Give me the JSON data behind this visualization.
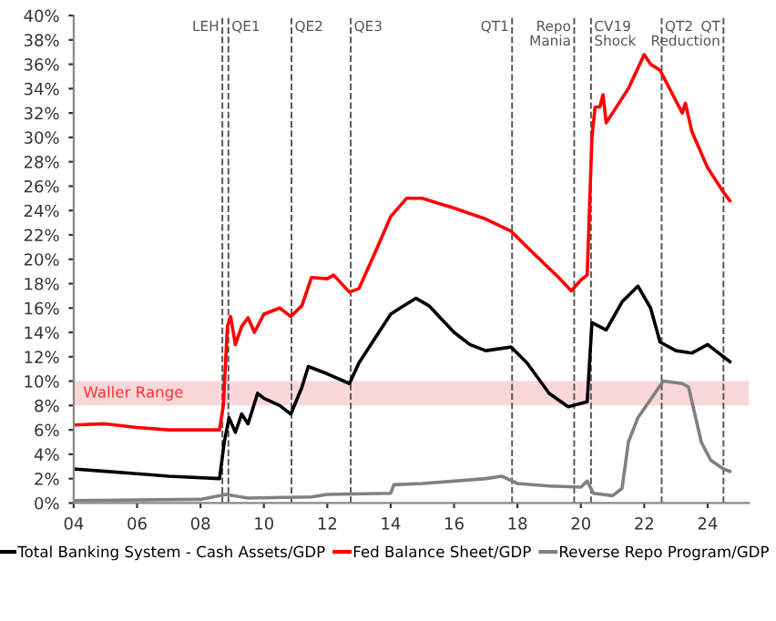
{
  "chart_data": {
    "type": "line",
    "xlim": [
      2004,
      2025.3
    ],
    "ylim": [
      0,
      40
    ],
    "xticks": [
      {
        "value": 2004,
        "label": "04"
      },
      {
        "value": 2006,
        "label": "06"
      },
      {
        "value": 2008,
        "label": "08"
      },
      {
        "value": 2010,
        "label": "10"
      },
      {
        "value": 2012,
        "label": "12"
      },
      {
        "value": 2014,
        "label": "14"
      },
      {
        "value": 2016,
        "label": "16"
      },
      {
        "value": 2018,
        "label": "18"
      },
      {
        "value": 2020,
        "label": "20"
      },
      {
        "value": 2022,
        "label": "22"
      },
      {
        "value": 2024,
        "label": "24"
      }
    ],
    "yticks": [
      {
        "value": 0,
        "label": "0%"
      },
      {
        "value": 2,
        "label": "2%"
      },
      {
        "value": 4,
        "label": "4%"
      },
      {
        "value": 6,
        "label": "6%"
      },
      {
        "value": 8,
        "label": "8%"
      },
      {
        "value": 10,
        "label": "10%"
      },
      {
        "value": 12,
        "label": "12%"
      },
      {
        "value": 14,
        "label": "14%"
      },
      {
        "value": 16,
        "label": "16%"
      },
      {
        "value": 18,
        "label": "18%"
      },
      {
        "value": 20,
        "label": "20%"
      },
      {
        "value": 22,
        "label": "22%"
      },
      {
        "value": 24,
        "label": "24%"
      },
      {
        "value": 26,
        "label": "26%"
      },
      {
        "value": 28,
        "label": "28%"
      },
      {
        "value": 30,
        "label": "30%"
      },
      {
        "value": 32,
        "label": "32%"
      },
      {
        "value": 34,
        "label": "34%"
      },
      {
        "value": 36,
        "label": "36%"
      },
      {
        "value": 38,
        "label": "38%"
      },
      {
        "value": 40,
        "label": "40%"
      }
    ],
    "grid": false,
    "legend": "bottom",
    "marker": "none",
    "line_style": "solid",
    "bands": [
      {
        "axis": "y",
        "from": 8,
        "to": 10,
        "label": "Waller Range",
        "color": "#f8d7d9"
      }
    ],
    "ref_lines": [
      {
        "axis": "x",
        "value": 2008.69,
        "label": "LEH",
        "color": "#555555",
        "line_style": "dashed"
      },
      {
        "axis": "x",
        "value": 2008.88,
        "label": "QE1",
        "color": "#555555",
        "line_style": "dashed"
      },
      {
        "axis": "x",
        "value": 2010.87,
        "label": "QE2",
        "color": "#555555",
        "line_style": "dashed"
      },
      {
        "axis": "x",
        "value": 2012.74,
        "label": "QE3",
        "color": "#555555",
        "line_style": "dashed"
      },
      {
        "axis": "x",
        "value": 2017.83,
        "label": "QT1",
        "color": "#555555",
        "line_style": "dashed"
      },
      {
        "axis": "x",
        "value": 2019.79,
        "label": "Repo\nMania",
        "color": "#555555",
        "line_style": "dashed"
      },
      {
        "axis": "x",
        "value": 2020.32,
        "label": "CV19\nShock",
        "color": "#555555",
        "line_style": "dashed"
      },
      {
        "axis": "x",
        "value": 2022.55,
        "label": "QT2",
        "color": "#555555",
        "line_style": "dashed"
      },
      {
        "axis": "x",
        "value": 2024.5,
        "label": "QT\nReduction",
        "color": "#555555",
        "line_style": "dashed"
      }
    ],
    "series": [
      {
        "name": "Total Banking System - Cash Assets/GDP",
        "color": "#000000",
        "x": [
          2004,
          2005,
          2006,
          2007,
          2008.6,
          2008.75,
          2008.9,
          2009.1,
          2009.3,
          2009.5,
          2009.8,
          2010,
          2010.5,
          2010.85,
          2011.2,
          2011.4,
          2012,
          2012.7,
          2013,
          2013.5,
          2014,
          2014.3,
          2014.8,
          2015.2,
          2016,
          2016.5,
          2017,
          2017.8,
          2018.3,
          2019,
          2019.6,
          2020.2,
          2020.35,
          2020.8,
          2021.3,
          2021.8,
          2022.2,
          2022.5,
          2023,
          2023.5,
          2024,
          2024.7
        ],
        "values": [
          2.8,
          2.6,
          2.4,
          2.2,
          2.0,
          5.0,
          7.0,
          5.8,
          7.3,
          6.5,
          9.0,
          8.6,
          8.0,
          7.3,
          9.5,
          11.2,
          10.6,
          9.8,
          11.5,
          13.5,
          15.5,
          16.0,
          16.8,
          16.2,
          14.0,
          13.0,
          12.5,
          12.8,
          11.5,
          9.0,
          7.9,
          8.3,
          14.8,
          14.2,
          16.5,
          17.8,
          16.0,
          13.2,
          12.5,
          12.3,
          13.0,
          11.6
        ]
      },
      {
        "name": "Fed Balance Sheet/GDP",
        "color": "#ff0000",
        "x": [
          2004,
          2005,
          2006,
          2007,
          2008.6,
          2008.72,
          2008.85,
          2008.95,
          2009.1,
          2009.3,
          2009.5,
          2009.7,
          2010,
          2010.5,
          2010.85,
          2011.2,
          2011.5,
          2012,
          2012.2,
          2012.7,
          2013,
          2013.5,
          2014,
          2014.5,
          2015,
          2015.5,
          2016,
          2017,
          2017.8,
          2018.5,
          2019.3,
          2019.7,
          2020.0,
          2020.2,
          2020.35,
          2020.45,
          2020.6,
          2020.7,
          2020.8,
          2021,
          2021.5,
          2022.0,
          2022.2,
          2022.5,
          2023,
          2023.2,
          2023.3,
          2023.5,
          2024,
          2024.5,
          2024.7
        ],
        "values": [
          6.4,
          6.5,
          6.2,
          6.0,
          6.0,
          8.0,
          14.5,
          15.3,
          13.0,
          14.5,
          15.2,
          14.0,
          15.5,
          16.0,
          15.3,
          16.2,
          18.5,
          18.4,
          18.7,
          17.3,
          17.6,
          20.5,
          23.5,
          25.0,
          25.0,
          24.6,
          24.2,
          23.3,
          22.3,
          20.5,
          18.5,
          17.4,
          18.3,
          18.7,
          30.0,
          32.5,
          32.5,
          33.5,
          31.2,
          32.0,
          34.0,
          36.8,
          36.0,
          35.5,
          33.0,
          32.0,
          32.8,
          30.5,
          27.5,
          25.5,
          24.8
        ]
      },
      {
        "name": "Reverse Repo Program/GDP",
        "color": "#808080",
        "x": [
          2004,
          2008,
          2008.8,
          2009.5,
          2011.5,
          2012,
          2014,
          2014.1,
          2015,
          2016,
          2017,
          2017.5,
          2018,
          2019,
          2020,
          2020.2,
          2020.4,
          2021.0,
          2021.3,
          2021.5,
          2021.8,
          2022.2,
          2022.6,
          2023.2,
          2023.4,
          2023.8,
          2024.1,
          2024.5,
          2024.7
        ],
        "values": [
          0.2,
          0.3,
          0.7,
          0.4,
          0.5,
          0.7,
          0.8,
          1.5,
          1.6,
          1.8,
          2.0,
          2.2,
          1.6,
          1.4,
          1.3,
          1.8,
          0.8,
          0.6,
          1.2,
          5.0,
          7.0,
          8.5,
          10.0,
          9.8,
          9.5,
          5.0,
          3.5,
          2.8,
          2.6
        ]
      }
    ]
  }
}
